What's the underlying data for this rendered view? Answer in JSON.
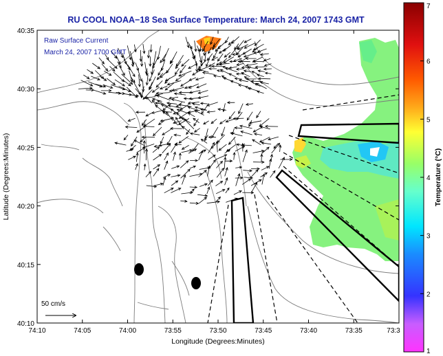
{
  "title": "RU COOL  NOAA−18  Sea Surface Temperature:  March 24, 2007 1743 GMT",
  "legend": {
    "line1": "Raw Surface Current",
    "line2": "March 24, 2007 1700 GMT"
  },
  "axes": {
    "xlabel": "Longitude (Degrees:Minutes)",
    "ylabel": "Latitude (Degrees:Minutes)",
    "xticks": [
      "74:10",
      "74:05",
      "74:00",
      "73:55",
      "73:50",
      "73:45",
      "73:40",
      "73:35",
      "73:3"
    ],
    "yticks": [
      "40:35",
      "40:30",
      "40:25",
      "40:20",
      "40:15",
      "40:10"
    ]
  },
  "colorbar": {
    "label": "Temperature (°C)",
    "ticks": [
      "7",
      "6",
      "5",
      "4",
      "3",
      "2",
      "1"
    ],
    "range": [
      1,
      7
    ]
  },
  "scale_arrow": {
    "label": "50 cm/s"
  },
  "colors": {
    "title": "#1a23a6",
    "land_contour": "#7a7a7a",
    "arrows": "#000000"
  },
  "regions": {
    "sst_patch": "sea surface temperature patch",
    "current_field": "surface current vectors",
    "markers": [
      "black marker",
      "black marker"
    ]
  }
}
